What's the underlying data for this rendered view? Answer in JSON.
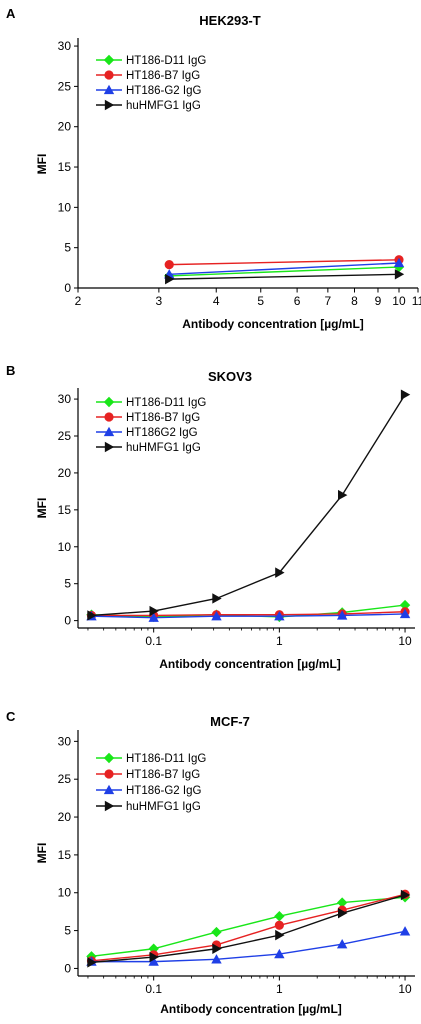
{
  "chart_data": [
    {
      "panel": "A",
      "type": "line",
      "title": "HEK293-T",
      "xlabel": "Antibody concentration [µg/mL]",
      "ylabel": "MFI",
      "xscale": "log",
      "xlim": [
        2,
        11
      ],
      "ylim": [
        0,
        31
      ],
      "xticks": [
        2,
        3,
        4,
        5,
        6,
        7,
        8,
        9,
        10,
        11
      ],
      "xtick_labels": [
        "2",
        "3",
        "4",
        "5",
        "6",
        "7",
        "8",
        "9",
        "10",
        "11"
      ],
      "yticks": [
        0,
        5,
        10,
        15,
        20,
        25,
        30
      ],
      "ytick_labels": [
        "0",
        "5",
        "10",
        "15",
        "20",
        "25",
        "30"
      ],
      "legend_position": "top-left",
      "x": [
        3.16,
        10
      ],
      "series": [
        {
          "name": "HT186-D11 IgG",
          "color": "#19e619",
          "marker": "diamond",
          "values": [
            1.5,
            2.6
          ]
        },
        {
          "name": "HT186-B7 IgG",
          "color": "#e62222",
          "marker": "circle",
          "values": [
            2.9,
            3.5
          ]
        },
        {
          "name": "HT186-G2 IgG",
          "color": "#1f3fe6",
          "marker": "triangle-up",
          "values": [
            1.7,
            3.1
          ]
        },
        {
          "name": "huHMFG1 IgG",
          "color": "#111111",
          "marker": "triangle-right",
          "values": [
            1.1,
            1.7
          ]
        }
      ]
    },
    {
      "panel": "B",
      "type": "line",
      "title": "SKOV3",
      "xlabel": "Antibody concentration [µg/mL]",
      "ylabel": "MFI",
      "xscale": "log",
      "xlim": [
        0.025,
        12
      ],
      "ylim": [
        -1,
        31.5
      ],
      "xticks": [
        0.1,
        1,
        10
      ],
      "xtick_labels": [
        "0.1",
        "1",
        "10"
      ],
      "yticks": [
        0,
        5,
        10,
        15,
        20,
        25,
        30
      ],
      "ytick_labels": [
        "0",
        "5",
        "10",
        "15",
        "20",
        "25",
        "30"
      ],
      "legend_position": "top-left",
      "x": [
        0.032,
        0.1,
        0.316,
        1,
        3.16,
        10
      ],
      "series": [
        {
          "name": "HT186-D11 IgG",
          "color": "#19e619",
          "marker": "diamond",
          "values": [
            0.8,
            0.5,
            0.8,
            0.5,
            1.1,
            2.1
          ]
        },
        {
          "name": "HT186-B7 IgG",
          "color": "#e62222",
          "marker": "circle",
          "values": [
            0.7,
            0.7,
            0.8,
            0.8,
            0.9,
            1.2
          ]
        },
        {
          "name": "HT186G2 IgG",
          "color": "#1f3fe6",
          "marker": "triangle-up",
          "values": [
            0.6,
            0.4,
            0.6,
            0.6,
            0.7,
            0.9
          ]
        },
        {
          "name": "huHMFG1 IgG",
          "color": "#111111",
          "marker": "triangle-right",
          "values": [
            0.7,
            1.3,
            3.0,
            6.5,
            17.0,
            30.6
          ]
        }
      ]
    },
    {
      "panel": "C",
      "type": "line",
      "title": "MCF-7",
      "xlabel": "Antibody concentration [µg/mL]",
      "ylabel": "MFI",
      "xscale": "log",
      "xlim": [
        0.025,
        12
      ],
      "ylim": [
        -1,
        31.5
      ],
      "xticks": [
        0.1,
        1,
        10
      ],
      "xtick_labels": [
        "0.1",
        "1",
        "10"
      ],
      "yticks": [
        0,
        5,
        10,
        15,
        20,
        25,
        30
      ],
      "ytick_labels": [
        "0",
        "5",
        "10",
        "15",
        "20",
        "25",
        "30"
      ],
      "legend_position": "top-left",
      "x": [
        0.032,
        0.1,
        0.316,
        1,
        3.16,
        10
      ],
      "series": [
        {
          "name": "HT186-D11 IgG",
          "color": "#19e619",
          "marker": "diamond",
          "values": [
            1.6,
            2.6,
            4.8,
            6.9,
            8.7,
            9.4
          ]
        },
        {
          "name": "HT186-B7 IgG",
          "color": "#e62222",
          "marker": "circle",
          "values": [
            1.0,
            1.8,
            3.1,
            5.7,
            7.7,
            9.8
          ]
        },
        {
          "name": "HT186-G2 IgG",
          "color": "#1f3fe6",
          "marker": "triangle-up",
          "values": [
            0.9,
            0.9,
            1.2,
            1.9,
            3.2,
            4.9
          ]
        },
        {
          "name": "huHMFG1 IgG",
          "color": "#111111",
          "marker": "triangle-right",
          "values": [
            0.8,
            1.5,
            2.6,
            4.4,
            7.3,
            9.7
          ]
        }
      ]
    }
  ]
}
